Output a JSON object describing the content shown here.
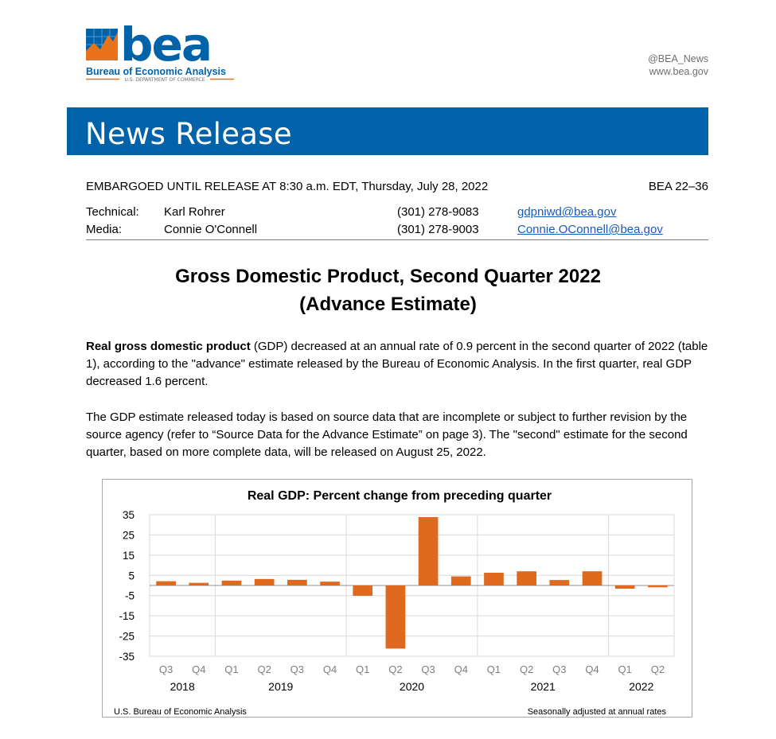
{
  "header": {
    "logo_text": "bea",
    "logo_subtitle": "Bureau of Economic Analysis",
    "logo_dept": "U.S. DEPARTMENT OF COMMERCE",
    "social_handle": "@BEA_News",
    "website": "www.bea.gov"
  },
  "banner": {
    "title": "News Release"
  },
  "embargo": {
    "text": "EMBARGOED UNTIL RELEASE AT 8:30 a.m. EDT, Thursday, July 28, 2022",
    "release_number": "BEA 22–36"
  },
  "contacts": [
    {
      "role": "Technical:",
      "name": "Karl Rohrer",
      "phone": "(301) 278-9083",
      "email": "gdpniwd@bea.gov"
    },
    {
      "role": "Media:",
      "name": "Connie O'Connell",
      "phone": "(301) 278-9003",
      "email": "Connie.OConnell@bea.gov"
    }
  ],
  "document": {
    "title_line1": "Gross Domestic Product, Second Quarter 2022",
    "title_line2": "(Advance Estimate)",
    "para1_bold": "Real gross domestic product",
    "para1_text": " (GDP) decreased at an annual rate of 0.9 percent in the second quarter of 2022 (table 1), according to the \"advance\" estimate released by the Bureau of Economic Analysis. In the first quarter, real GDP decreased 1.6 percent.",
    "para2_text": "The GDP estimate released today is based on source data that are incomplete or subject to further revision by the source agency (refer to “Source Data for the Advance Estimate” on page 3). The \"second\" estimate for the second quarter, based on more complete data, will be released on August 25, 2022."
  },
  "colors": {
    "bea_blue": "#0062a8",
    "bea_orange": "#e8731c",
    "bar_color": "#df6a1f",
    "link_color": "#1a5ab8"
  },
  "chart_data": {
    "type": "bar",
    "title": "Real GDP:  Percent change from preceding quarter",
    "categories": [
      "Q3",
      "Q4",
      "Q1",
      "Q2",
      "Q3",
      "Q4",
      "Q1",
      "Q2",
      "Q3",
      "Q4",
      "Q1",
      "Q2",
      "Q3",
      "Q4",
      "Q1",
      "Q2"
    ],
    "year_groups": [
      {
        "label": "2018",
        "count": 2
      },
      {
        "label": "2019",
        "count": 4
      },
      {
        "label": "2020",
        "count": 4
      },
      {
        "label": "2021",
        "count": 4
      },
      {
        "label": "2022",
        "count": 2
      }
    ],
    "values": [
      2.1,
      1.3,
      2.4,
      3.2,
      2.8,
      1.9,
      -5.1,
      -31.2,
      33.8,
      4.5,
      6.3,
      7.0,
      2.7,
      7.0,
      -1.6,
      -0.9
    ],
    "yticks": [
      35,
      25,
      15,
      5,
      -5,
      -15,
      -25,
      -35
    ],
    "ylim": [
      -35,
      35
    ],
    "source_note": "U.S. Bureau of Economic Analysis",
    "rate_note": "Seasonally adjusted at annual rates"
  }
}
